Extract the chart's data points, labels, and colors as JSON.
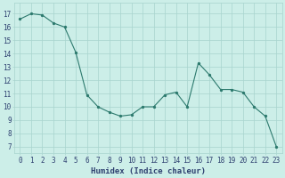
{
  "x": [
    0,
    1,
    2,
    3,
    4,
    5,
    6,
    7,
    8,
    9,
    10,
    11,
    12,
    13,
    14,
    15,
    16,
    17,
    18,
    19,
    20,
    21,
    22,
    23
  ],
  "y": [
    16.6,
    17.0,
    16.9,
    16.3,
    16.0,
    14.1,
    10.9,
    10.0,
    9.6,
    9.3,
    9.4,
    10.0,
    10.0,
    10.9,
    11.1,
    10.0,
    13.3,
    12.4,
    11.3,
    11.3,
    11.1,
    10.0,
    9.3,
    7.0
  ],
  "line_color": "#2d7a6e",
  "marker_color": "#2d7a6e",
  "bg_color": "#cceee8",
  "grid_color_minor": "#c0e4de",
  "grid_color_major": "#a8d4ce",
  "xlabel": "Humidex (Indice chaleur)",
  "yticks": [
    7,
    8,
    9,
    10,
    11,
    12,
    13,
    14,
    15,
    16,
    17
  ],
  "xticks": [
    0,
    1,
    2,
    3,
    4,
    5,
    6,
    7,
    8,
    9,
    10,
    11,
    12,
    13,
    14,
    15,
    16,
    17,
    18,
    19,
    20,
    21,
    22,
    23
  ],
  "ylim": [
    6.5,
    17.8
  ],
  "xlim": [
    -0.5,
    23.5
  ],
  "font_color": "#2e4070",
  "xlabel_fontsize": 6.5,
  "tick_fontsize": 5.5
}
